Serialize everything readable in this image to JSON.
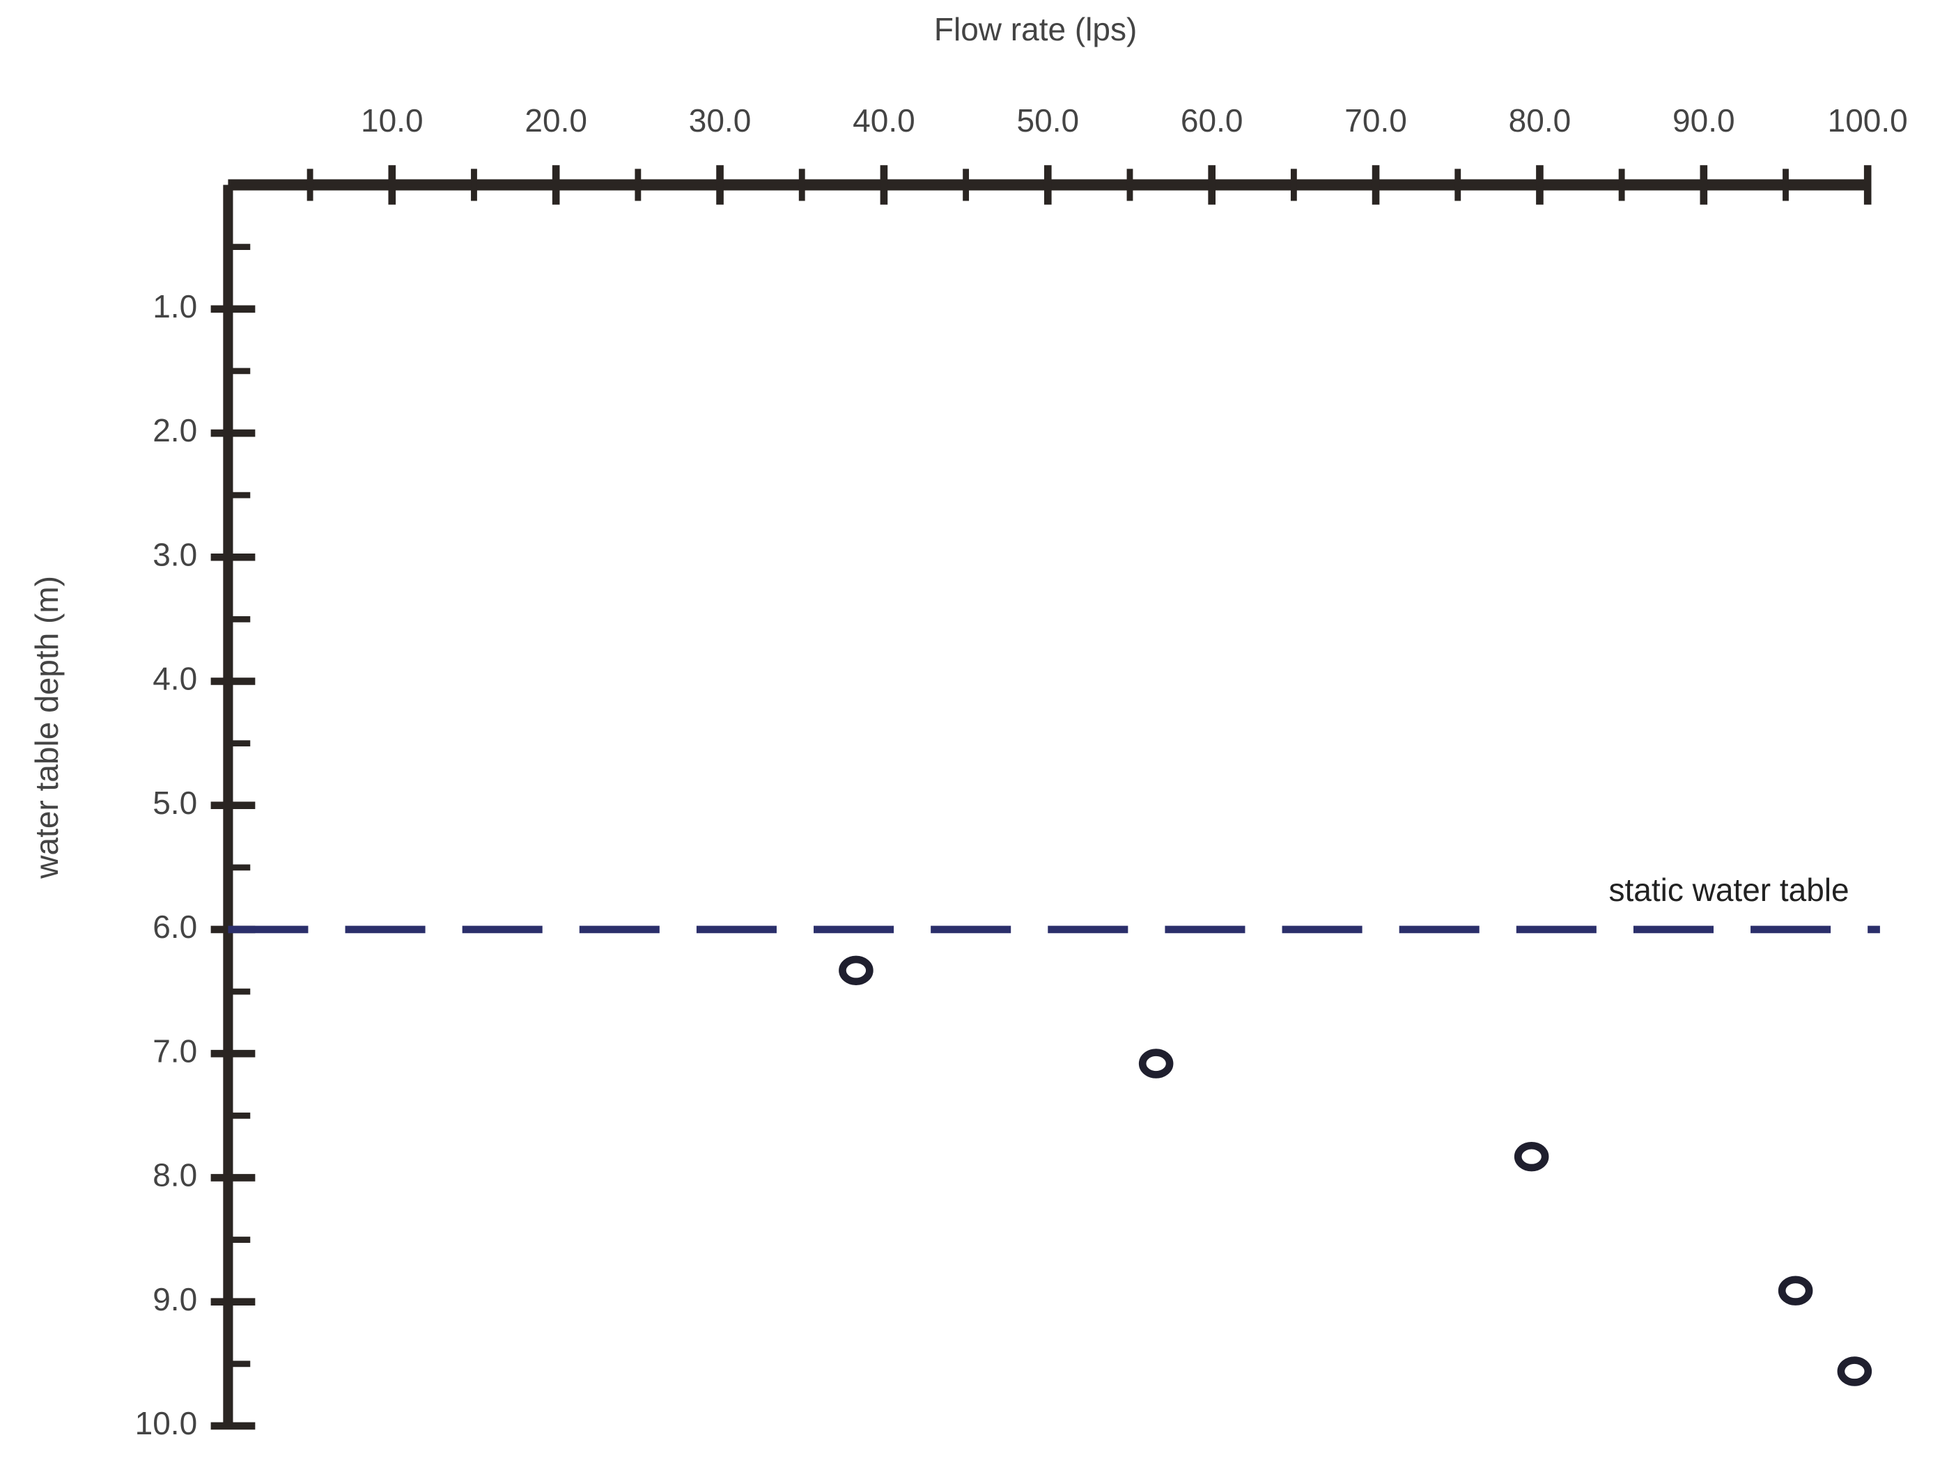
{
  "chart_data": {
    "type": "scatter",
    "x_label": "Flow rate (lps)",
    "y_label": "water table depth (m)",
    "x": [
      38.3,
      56.6,
      79.5,
      95.6,
      99.2
    ],
    "values": [
      6.33,
      7.08,
      7.83,
      8.91,
      9.56
    ],
    "color": "#1f1f2e",
    "xlim": [
      0,
      100
    ],
    "ylim": [
      0,
      10
    ],
    "y_inverted": true,
    "x_axis_position": "top",
    "xticks": [
      {
        "value": 10,
        "label": "10.0"
      },
      {
        "value": 20,
        "label": "20.0"
      },
      {
        "value": 30,
        "label": "30.0"
      },
      {
        "value": 40,
        "label": "40.0"
      },
      {
        "value": 50,
        "label": "50.0"
      },
      {
        "value": 60,
        "label": "60.0"
      },
      {
        "value": 70,
        "label": "70.0"
      },
      {
        "value": 80,
        "label": "80.0"
      },
      {
        "value": 90,
        "label": "90.0"
      },
      {
        "value": 100,
        "label": "100.0"
      }
    ],
    "yticks": [
      {
        "value": 1,
        "label": "1.0"
      },
      {
        "value": 2,
        "label": "2.0"
      },
      {
        "value": 3,
        "label": "3.0"
      },
      {
        "value": 4,
        "label": "4.0"
      },
      {
        "value": 5,
        "label": "5.0"
      },
      {
        "value": 6,
        "label": "6.0"
      },
      {
        "value": 7,
        "label": "7.0"
      },
      {
        "value": 8,
        "label": "8.0"
      },
      {
        "value": 9,
        "label": "9.0"
      },
      {
        "value": 10,
        "label": "10.0"
      }
    ],
    "reference_line": {
      "value": 6,
      "label": "static water table",
      "color": "#2b2f6b"
    }
  }
}
